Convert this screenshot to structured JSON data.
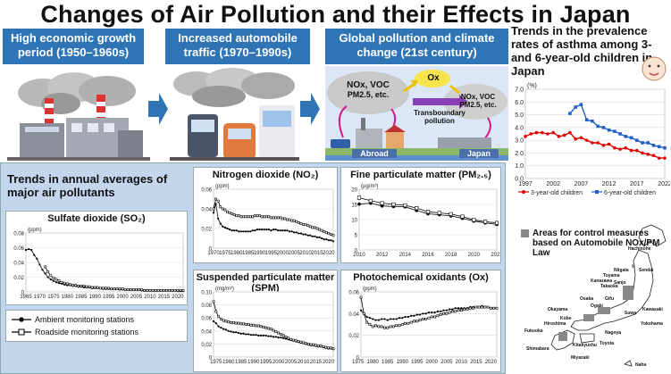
{
  "title": "Changes of Air Pollution and their Effects in Japan",
  "eras": [
    {
      "label": "High economic growth period (1950–1960s)"
    },
    {
      "label": "Increased automobile traffic (1970–1990s)"
    },
    {
      "label": "Global pollution and climate change (21st century)"
    }
  ],
  "global_scene": {
    "cloud1": "NOx, VOC",
    "cloud1b": "PM2.5, etc.",
    "ox": "Ox",
    "transboundary": "Transboundary pollution",
    "cloud2": "NOx, VOC",
    "cloud2b": "PM2.5, etc.",
    "abroad": "Abroad",
    "japan": "Japan"
  },
  "asthma_title": "Trends in the prevalence rates of asthma among 3- and 6-year-old children in Japan",
  "trends_title": "Trends in annual averages of major air pollutants",
  "map_legend": "Areas for control measures based on Automobile NOx/PM Law",
  "map_labels": [
    "Hachinohe",
    "Sendai",
    "Takaoka",
    "Sanjo",
    "Gifu",
    "Ogaki",
    "Osaka",
    "Nagoya",
    "Toyota",
    "Suwa",
    "Kawasaki",
    "Yokohama",
    "Niigata",
    "Toyama",
    "Kanazawa",
    "Kobe",
    "Hiroshima",
    "Okayama",
    "Fukuoka",
    "Kitakyushu",
    "Miyazaki",
    "Shimabara",
    "Naha"
  ],
  "colors": {
    "accent": "#2f75b6",
    "red": "#e00000",
    "blue": "#2060c8"
  },
  "chart_data": [
    {
      "id": "asthma",
      "type": "line",
      "ylabel": "(%)",
      "ylim": [
        0,
        7
      ],
      "yticks": [
        "0.0",
        "1.0",
        "2.0",
        "3.0",
        "4.0",
        "5.0",
        "6.0",
        "7.0"
      ],
      "xticks": [
        "1997",
        "2002",
        "2007",
        "2012",
        "2017",
        "2022"
      ],
      "x": [
        1997,
        1998,
        1999,
        2000,
        2001,
        2002,
        2003,
        2004,
        2005,
        2006,
        2007,
        2008,
        2009,
        2010,
        2011,
        2012,
        2013,
        2014,
        2015,
        2016,
        2017,
        2018,
        2019,
        2020,
        2021,
        2022
      ],
      "series": [
        {
          "name": "3-year-old children",
          "color": "#e00000",
          "values": [
            3.3,
            3.5,
            3.6,
            3.6,
            3.5,
            3.6,
            3.3,
            3.4,
            3.6,
            3.1,
            3.2,
            3.0,
            2.8,
            2.8,
            2.6,
            2.7,
            2.4,
            2.3,
            2.4,
            2.2,
            2.2,
            2.0,
            1.9,
            1.8,
            1.6,
            1.6
          ]
        },
        {
          "name": "6-year-old children",
          "color": "#2060c8",
          "values": [
            null,
            null,
            null,
            null,
            null,
            null,
            null,
            null,
            5.1,
            5.6,
            5.8,
            4.6,
            4.5,
            4.1,
            4.0,
            3.8,
            3.7,
            3.5,
            3.3,
            3.2,
            3.0,
            2.8,
            2.8,
            2.6,
            2.5,
            2.4
          ]
        }
      ]
    },
    {
      "id": "so2",
      "type": "line",
      "title": "Sulfate dioxide (SO₂)",
      "ylabel": "(ppm)",
      "ylim": [
        0,
        0.08
      ],
      "yticks": [
        "0",
        "0.02",
        "0.04",
        "0.06",
        "0.08"
      ],
      "xticks": [
        "1965",
        "1970",
        "1975",
        "1980",
        "1985",
        "1990",
        "1995",
        "2000",
        "2005",
        "2010",
        "2015",
        "2020"
      ],
      "x0": 1965,
      "x1": 2022,
      "series": [
        {
          "name": "Ambient monitoring stations",
          "values": [
            0.057,
            0.058,
            0.057,
            0.05,
            0.045,
            0.037,
            0.03,
            0.025,
            0.02,
            0.017,
            0.015,
            0.013,
            0.012,
            0.011,
            0.01,
            0.009,
            0.009,
            0.008,
            0.008,
            0.007,
            0.007,
            0.006,
            0.006,
            0.006,
            0.005,
            0.005,
            0.005,
            0.005,
            0.004,
            0.004,
            0.004,
            0.004,
            0.004,
            0.004,
            0.003,
            0.003,
            0.003,
            0.003,
            0.003,
            0.003,
            0.003,
            0.003,
            0.002,
            0.002,
            0.002,
            0.002,
            0.002,
            0.002,
            0.002,
            0.002,
            0.002,
            0.002,
            0.002,
            0.002,
            0.002,
            0.001,
            0.001,
            0.001
          ]
        },
        {
          "name": "Roadside monitoring stations",
          "values": [
            null,
            null,
            null,
            null,
            null,
            null,
            null,
            0.034,
            0.027,
            0.022,
            0.019,
            0.017,
            0.015,
            0.013,
            0.012,
            0.011,
            0.01,
            0.009,
            0.009,
            0.008,
            0.008,
            0.008,
            0.007,
            0.007,
            0.006,
            0.006,
            0.006,
            0.005,
            0.005,
            0.005,
            0.005,
            0.004,
            0.004,
            0.004,
            0.004,
            0.004,
            0.003,
            0.003,
            0.003,
            0.003,
            0.003,
            0.003,
            0.003,
            0.002,
            0.002,
            0.002,
            0.002,
            0.002,
            0.002,
            0.002,
            0.002,
            0.002,
            0.002,
            0.002,
            0.002,
            0.002,
            0.002,
            0.002
          ]
        }
      ]
    },
    {
      "id": "no2",
      "type": "line",
      "title": "Nitrogen dioxide (NO₂)",
      "ylabel": "(ppm)",
      "ylim": [
        0,
        0.06
      ],
      "yticks": [
        "0",
        "0.02",
        "0.04",
        "0.06"
      ],
      "xticks": [
        "1970",
        "1975",
        "1980",
        "1985",
        "1990",
        "1995",
        "2000",
        "2005",
        "2010",
        "2015",
        "2020"
      ],
      "x0": 1970,
      "x1": 2022,
      "series": [
        {
          "name": "Ambient monitoring stations",
          "values": [
            0.036,
            0.045,
            0.03,
            0.025,
            0.022,
            0.021,
            0.02,
            0.019,
            0.018,
            0.018,
            0.018,
            0.017,
            0.017,
            0.017,
            0.017,
            0.017,
            0.017,
            0.018,
            0.018,
            0.019,
            0.019,
            0.019,
            0.019,
            0.019,
            0.019,
            0.018,
            0.019,
            0.019,
            0.018,
            0.018,
            0.018,
            0.018,
            0.018,
            0.017,
            0.017,
            0.016,
            0.016,
            0.015,
            0.015,
            0.014,
            0.014,
            0.013,
            0.013,
            0.012,
            0.012,
            0.011,
            0.011,
            0.01,
            0.009,
            0.009,
            0.008,
            0.008,
            0.007
          ]
        },
        {
          "name": "Roadside monitoring stations",
          "values": [
            0.04,
            0.05,
            0.048,
            0.042,
            0.04,
            0.039,
            0.037,
            0.036,
            0.035,
            0.034,
            0.033,
            0.033,
            0.032,
            0.032,
            0.032,
            0.032,
            0.032,
            0.032,
            0.033,
            0.033,
            0.033,
            0.032,
            0.032,
            0.032,
            0.032,
            0.031,
            0.031,
            0.031,
            0.031,
            0.031,
            0.03,
            0.03,
            0.029,
            0.029,
            0.028,
            0.028,
            0.027,
            0.026,
            0.025,
            0.024,
            0.024,
            0.023,
            0.022,
            0.021,
            0.021,
            0.02,
            0.019,
            0.018,
            0.017,
            0.016,
            0.015,
            0.014,
            0.013
          ]
        }
      ]
    },
    {
      "id": "pm25",
      "type": "line",
      "title": "Fine particulate matter (PM₂.₅)",
      "ylabel": "(μg/m³)",
      "ylim": [
        0,
        20
      ],
      "yticks": [
        "0",
        "5",
        "10",
        "15",
        "20"
      ],
      "xticks": [
        "2010",
        "2012",
        "2014",
        "2016",
        "2018",
        "2020",
        "2022"
      ],
      "x0": 2010,
      "x1": 2022,
      "series": [
        {
          "name": "Ambient monitoring stations",
          "values": [
            15.1,
            15.4,
            14.5,
            14.3,
            14.2,
            13.0,
            11.9,
            11.6,
            11.2,
            10.4,
            9.5,
            8.9,
            8.4
          ]
        },
        {
          "name": "Roadside monitoring stations",
          "values": [
            17.2,
            16.2,
            15.4,
            15.0,
            14.7,
            13.8,
            12.6,
            12.2,
            11.8,
            11.0,
            9.9,
            9.3,
            8.9
          ]
        }
      ]
    },
    {
      "id": "spm",
      "type": "line",
      "title": "Suspended particulate matter (SPM)",
      "ylabel": "(mg/m³)",
      "ylim": [
        0,
        0.1
      ],
      "yticks": [
        "0",
        "0.02",
        "0.04",
        "0.06",
        "0.08",
        "0.10"
      ],
      "xticks": [
        "1975",
        "1980",
        "1985",
        "1990",
        "1995",
        "2000",
        "2005",
        "2010",
        "2015",
        "2020"
      ],
      "x0": 1974,
      "x1": 2022,
      "series": [
        {
          "name": "Ambient monitoring stations",
          "values": [
            0.055,
            0.052,
            0.047,
            0.045,
            0.043,
            0.042,
            0.04,
            0.039,
            0.038,
            0.038,
            0.037,
            0.036,
            0.036,
            0.035,
            0.035,
            0.034,
            0.034,
            0.034,
            0.033,
            0.033,
            0.033,
            0.033,
            0.032,
            0.032,
            0.031,
            0.031,
            0.03,
            0.03,
            0.029,
            0.028,
            0.027,
            0.026,
            0.025,
            0.024,
            0.023,
            0.022,
            0.021,
            0.02,
            0.019,
            0.018,
            0.018,
            0.017,
            0.016,
            0.016,
            0.015,
            0.014,
            0.013,
            0.013,
            0.012
          ]
        },
        {
          "name": "Roadside monitoring stations",
          "values": [
            0.085,
            0.07,
            0.062,
            0.058,
            0.056,
            0.055,
            0.054,
            0.053,
            0.053,
            0.052,
            0.052,
            0.051,
            0.051,
            0.05,
            0.05,
            0.049,
            0.049,
            0.048,
            0.048,
            0.047,
            0.046,
            0.045,
            0.044,
            0.043,
            0.041,
            0.039,
            0.037,
            0.035,
            0.033,
            0.031,
            0.029,
            0.027,
            0.026,
            0.025,
            0.024,
            0.023,
            0.022,
            0.021,
            0.02,
            0.019,
            0.019,
            0.018,
            0.017,
            0.017,
            0.016,
            0.015,
            0.014,
            0.014,
            0.013
          ]
        }
      ]
    },
    {
      "id": "ox",
      "type": "line",
      "title": "Photochemical oxidants (Ox)",
      "ylabel": "(ppm)",
      "ylim": [
        0,
        0.06
      ],
      "yticks": [
        "0",
        "0.02",
        "0.04",
        "0.06"
      ],
      "xticks": [
        "1975",
        "1980",
        "1985",
        "1990",
        "1995",
        "2000",
        "2005",
        "2010",
        "2015",
        "2020"
      ],
      "x0": 1976,
      "x1": 2022,
      "series": [
        {
          "name": "Ambient monitoring stations",
          "values": [
            0.043,
            0.04,
            0.037,
            0.036,
            0.035,
            0.034,
            0.034,
            0.035,
            0.035,
            0.034,
            0.035,
            0.035,
            0.035,
            0.036,
            0.036,
            0.037,
            0.037,
            0.038,
            0.038,
            0.039,
            0.039,
            0.04,
            0.04,
            0.041,
            0.041,
            0.041,
            0.042,
            0.042,
            0.043,
            0.043,
            0.044,
            0.044,
            0.045,
            0.045,
            0.045,
            0.045,
            0.045,
            0.046,
            0.046,
            0.046,
            0.046,
            0.047,
            0.046,
            0.046,
            0.045,
            0.045,
            0.045
          ]
        },
        {
          "name": "Roadside monitoring stations",
          "values": [
            0.055,
            0.04,
            0.032,
            0.03,
            0.028,
            0.029,
            0.028,
            0.028,
            0.027,
            0.027,
            0.028,
            0.028,
            0.029,
            0.029,
            0.03,
            0.031,
            0.031,
            0.032,
            0.033,
            0.033,
            0.034,
            0.035,
            0.035,
            0.036,
            0.037,
            0.037,
            0.038,
            0.039,
            0.04,
            0.04,
            0.041,
            0.042,
            0.042,
            0.043,
            0.043,
            0.044,
            0.044,
            0.045,
            0.045,
            0.046,
            0.046,
            0.046,
            0.046,
            0.046,
            0.045,
            0.045,
            0.045
          ]
        }
      ]
    }
  ]
}
